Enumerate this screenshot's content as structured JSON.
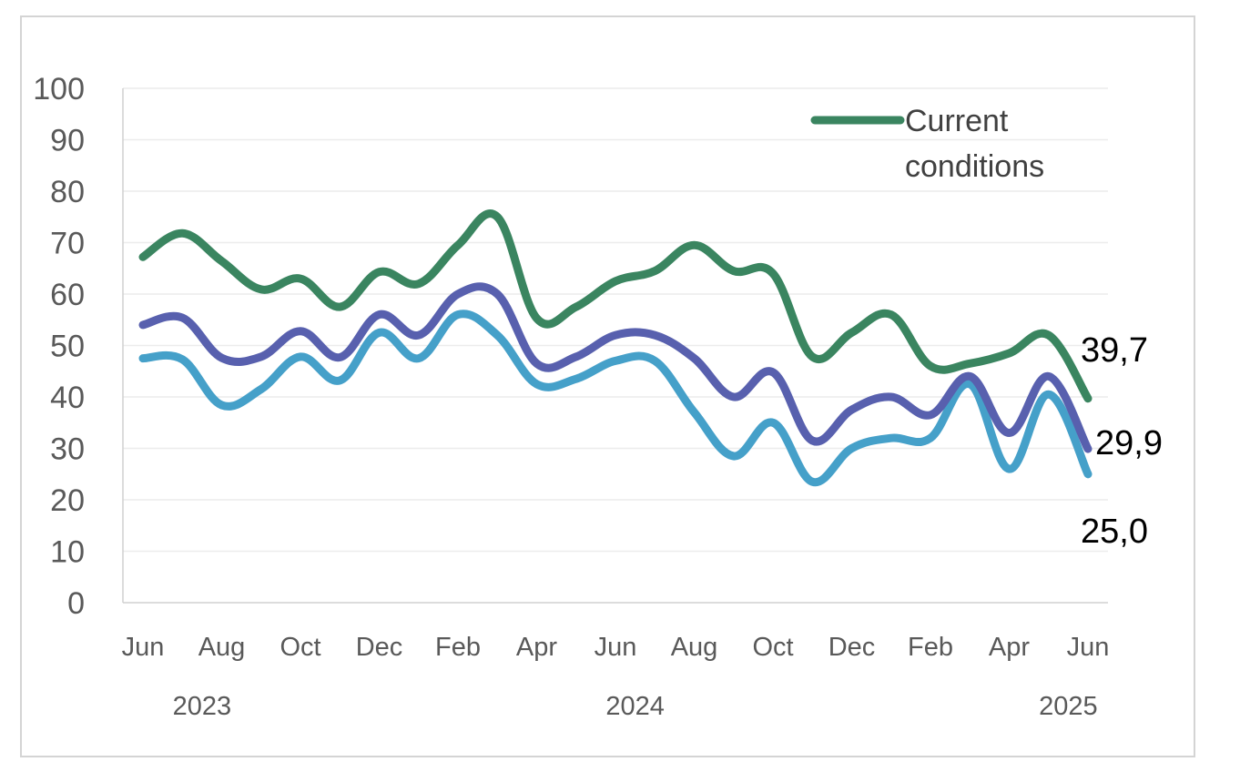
{
  "chart_data": {
    "type": "line",
    "title": "",
    "xlabel": "",
    "ylabel": "",
    "ylim": [
      0,
      100
    ],
    "yticks": [
      "0",
      "10",
      "20",
      "30",
      "40",
      "50",
      "60",
      "70",
      "80",
      "90",
      "100"
    ],
    "grid": "horizontal",
    "x": [
      "2023-06",
      "2023-07",
      "2023-08",
      "2023-09",
      "2023-10",
      "2023-11",
      "2023-12",
      "2024-01",
      "2024-02",
      "2024-03",
      "2024-04",
      "2024-05",
      "2024-06",
      "2024-07",
      "2024-08",
      "2024-09",
      "2024-10",
      "2024-11",
      "2024-12",
      "2025-01",
      "2025-02",
      "2025-03",
      "2025-04",
      "2025-05",
      "2025-06"
    ],
    "x_tick_labels": [
      "Jun",
      "Aug",
      "Oct",
      "Dec",
      "Feb",
      "Apr",
      "Jun",
      "Aug",
      "Oct",
      "Dec",
      "Feb",
      "Apr",
      "Jun"
    ],
    "year_labels": [
      "2023",
      "2024",
      "2025"
    ],
    "legend": {
      "position": "top-right",
      "entries": [
        {
          "label_lines": [
            "Current",
            "conditions"
          ],
          "color": "#3a8560"
        }
      ]
    },
    "series": [
      {
        "name": "Current conditions",
        "color": "#3a8560",
        "values": [
          67.2,
          71.8,
          66.4,
          60.9,
          63.0,
          57.5,
          64.3,
          62.0,
          69.5,
          75.0,
          55.3,
          57.5,
          62.5,
          64.5,
          69.5,
          64.5,
          64.0,
          47.8,
          52.5,
          56.0,
          46.0,
          46.5,
          48.5,
          52.0,
          39.7
        ],
        "end_label": "39,7"
      },
      {
        "color": "#5860ae",
        "values": [
          54.0,
          55.4,
          47.6,
          47.8,
          52.8,
          47.7,
          56.0,
          52.0,
          60.0,
          60.0,
          46.5,
          47.8,
          52.0,
          52.0,
          47.5,
          40.0,
          44.8,
          31.5,
          37.5,
          40.0,
          36.5,
          44.0,
          33.0,
          44.0,
          29.9
        ],
        "end_label": "29,9"
      },
      {
        "color": "#45a0c9",
        "values": [
          47.5,
          47.3,
          38.4,
          41.5,
          47.8,
          43.2,
          52.5,
          47.5,
          56.0,
          52.0,
          42.5,
          43.5,
          47.0,
          47.0,
          37.0,
          28.5,
          35.0,
          23.5,
          30.0,
          32.0,
          32.0,
          42.5,
          26.0,
          40.5,
          25.0
        ],
        "end_label": "25,0"
      }
    ]
  }
}
